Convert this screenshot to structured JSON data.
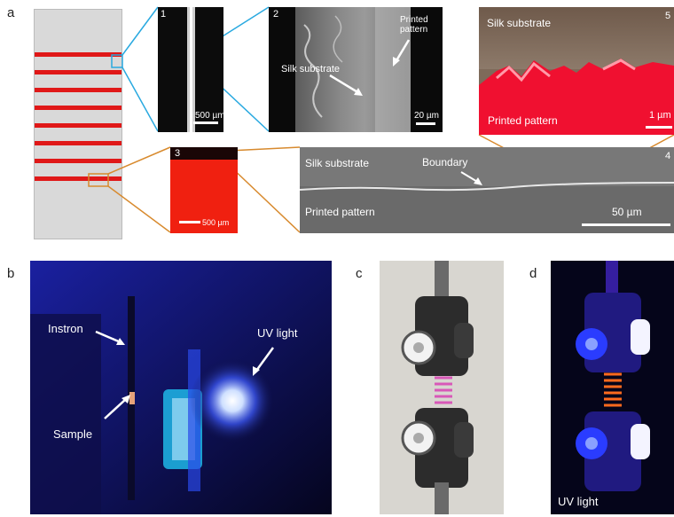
{
  "panel_labels": {
    "a": "a",
    "b": "b",
    "c": "c",
    "d": "d"
  },
  "inset1": {
    "number": "1",
    "scale": "500 µm"
  },
  "inset2": {
    "number": "2",
    "silk_label": "Silk substrate",
    "printed_label": "Printed\npattern",
    "scale": "20 µm"
  },
  "inset_top_right": {
    "number": "5",
    "silk_label": "Silk substrate",
    "printed_label": "Printed pattern",
    "scale": "1 µm"
  },
  "inset3": {
    "number": "3",
    "scale": "500 µm"
  },
  "inset4": {
    "number": "4",
    "silk_label": "Silk substrate",
    "boundary_label": "Boundary",
    "printed_label": "Printed pattern",
    "scale": "50 µm"
  },
  "photo_b": {
    "instron": "Instron",
    "uv_light": "UV light",
    "sample": "Sample"
  },
  "photo_d": {
    "uv_light": "UV light"
  },
  "colors": {
    "red": "#e01818",
    "blue_callout": "#29a9e0",
    "orange_callout": "#d88a2e"
  }
}
